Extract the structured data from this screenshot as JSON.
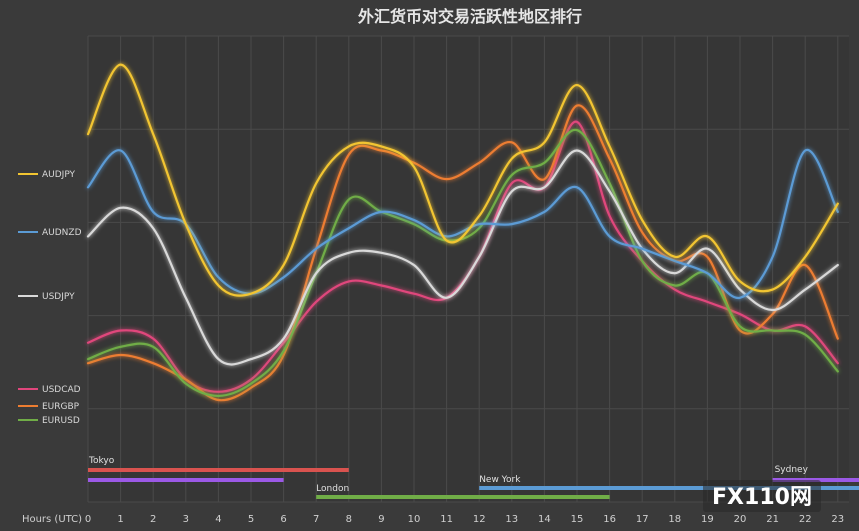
{
  "chart_data": {
    "type": "line",
    "title": "外汇货币对交易活跃性地区排行",
    "xlabel": "Hours (UTC)",
    "x": [
      0,
      1,
      2,
      3,
      4,
      5,
      6,
      7,
      8,
      9,
      10,
      11,
      12,
      13,
      14,
      15,
      16,
      17,
      18,
      19,
      20,
      21,
      22,
      23
    ],
    "ylim": [
      0,
      100
    ],
    "grid": true,
    "legend_position": "left",
    "series": [
      {
        "name": "AUDJPY",
        "color": "#f2c531",
        "values": [
          76,
          93,
          76,
          54,
          39,
          37,
          44,
          64,
          73,
          73,
          68,
          50,
          56,
          70,
          74,
          88,
          73,
          55,
          46,
          51,
          40,
          38,
          46,
          59
        ]
      },
      {
        "name": "AUDNZD",
        "color": "#5b9bd5",
        "values": [
          63,
          72,
          57,
          54,
          41,
          37,
          41,
          48,
          53,
          57,
          55,
          51,
          54,
          54,
          57,
          63,
          51,
          48,
          45,
          42,
          36,
          46,
          72,
          57
        ]
      },
      {
        "name": "USDJPY",
        "color": "#d9d9d9",
        "values": [
          51,
          58,
          53,
          36,
          21,
          21,
          26,
          42,
          47,
          47,
          44,
          36,
          46,
          62,
          63,
          72,
          62,
          48,
          42,
          48,
          38,
          33,
          38,
          44
        ]
      },
      {
        "name": "USDCAD",
        "color": "#e0467c",
        "values": [
          25,
          28,
          26,
          16,
          13,
          16,
          25,
          35,
          40,
          39,
          37,
          36,
          46,
          64,
          63,
          79,
          56,
          45,
          38,
          35,
          32,
          28,
          29,
          20
        ]
      },
      {
        "name": "EURGBP",
        "color": "#ed7d31",
        "values": [
          20,
          22,
          20,
          16,
          11,
          14,
          22,
          48,
          71,
          72,
          69,
          65,
          69,
          74,
          65,
          83,
          70,
          52,
          45,
          46,
          28,
          32,
          44,
          26
        ]
      },
      {
        "name": "EURUSD",
        "color": "#70ad47",
        "values": [
          21,
          24,
          24,
          15,
          12,
          15,
          23,
          42,
          60,
          57,
          54,
          50,
          53,
          66,
          69,
          77,
          64,
          45,
          39,
          42,
          29,
          28,
          27,
          18
        ]
      }
    ],
    "sessions": [
      {
        "name": "Tokyo",
        "start": 0,
        "end": 8,
        "color": "#d9534f"
      },
      {
        "name": "Tokyo",
        "start": 0,
        "end": 6,
        "color": "#9b59e6"
      },
      {
        "name": "London",
        "start": 7,
        "end": 16,
        "color": "#70ad47"
      },
      {
        "name": "New York",
        "start": 12,
        "end": 24,
        "color": "#5b9bd5"
      },
      {
        "name": "Sydney",
        "start": 21,
        "end": 24,
        "color": "#9b59e6"
      }
    ]
  },
  "watermark": {
    "logo_text": "FX110网"
  }
}
